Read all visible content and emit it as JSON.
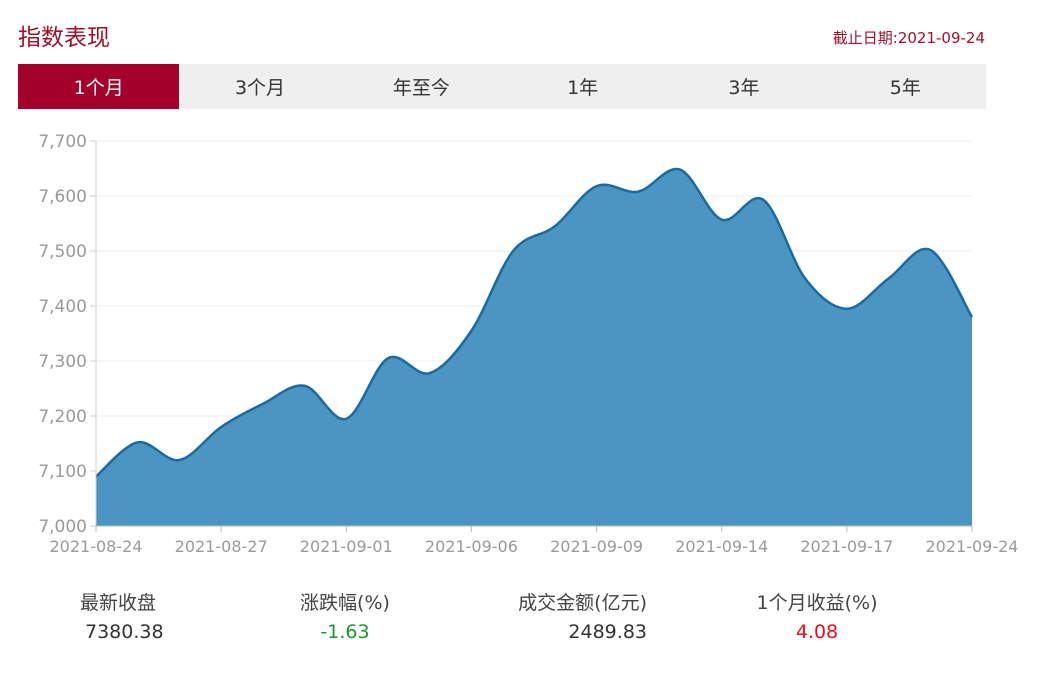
{
  "header": {
    "title": "指数表现",
    "cutoff_prefix": "截止日期:",
    "cutoff_date": "2021-09-24"
  },
  "tabs": [
    {
      "label": "1个月",
      "active": true
    },
    {
      "label": "3个月",
      "active": false
    },
    {
      "label": "年至今",
      "active": false
    },
    {
      "label": "1年",
      "active": false
    },
    {
      "label": "3年",
      "active": false
    },
    {
      "label": "5年",
      "active": false
    }
  ],
  "chart_data": {
    "type": "area",
    "title": "",
    "xlabel": "",
    "ylabel": "",
    "ylim": [
      7000,
      7700
    ],
    "yticks": [
      7000,
      7100,
      7200,
      7300,
      7400,
      7500,
      7600,
      7700
    ],
    "ytick_labels": [
      "7,000",
      "7,100",
      "7,200",
      "7,300",
      "7,400",
      "7,500",
      "7,600",
      "7,700"
    ],
    "xtick_labels": [
      "2021-08-24",
      "2021-08-27",
      "2021-09-01",
      "2021-09-06",
      "2021-09-09",
      "2021-09-14",
      "2021-09-17",
      "2021-09-24"
    ],
    "grid": true,
    "line_color": "#1a6aa3",
    "fill_color": "#4a95c2",
    "x": [
      "2021-08-24",
      "2021-08-25",
      "2021-08-26",
      "2021-08-27",
      "2021-08-30",
      "2021-08-31",
      "2021-09-01",
      "2021-09-02",
      "2021-09-03",
      "2021-09-06",
      "2021-09-07",
      "2021-09-08",
      "2021-09-09",
      "2021-09-10",
      "2021-09-13",
      "2021-09-14",
      "2021-09-15",
      "2021-09-16",
      "2021-09-17",
      "2021-09-22",
      "2021-09-23",
      "2021-09-24"
    ],
    "values": [
      7090,
      7152,
      7120,
      7180,
      7222,
      7255,
      7195,
      7305,
      7278,
      7355,
      7500,
      7545,
      7618,
      7608,
      7648,
      7557,
      7593,
      7450,
      7395,
      7450,
      7502,
      7380
    ]
  },
  "stats": [
    {
      "label": "最新收盘",
      "value": "7380.38",
      "tone": "neutral"
    },
    {
      "label": "涨跌幅(%)",
      "value": "-1.63",
      "tone": "down"
    },
    {
      "label": "成交金额(亿元)",
      "value": "2489.83",
      "tone": "neutral"
    },
    {
      "label": "1个月收益(%)",
      "value": "4.08",
      "tone": "up"
    }
  ]
}
